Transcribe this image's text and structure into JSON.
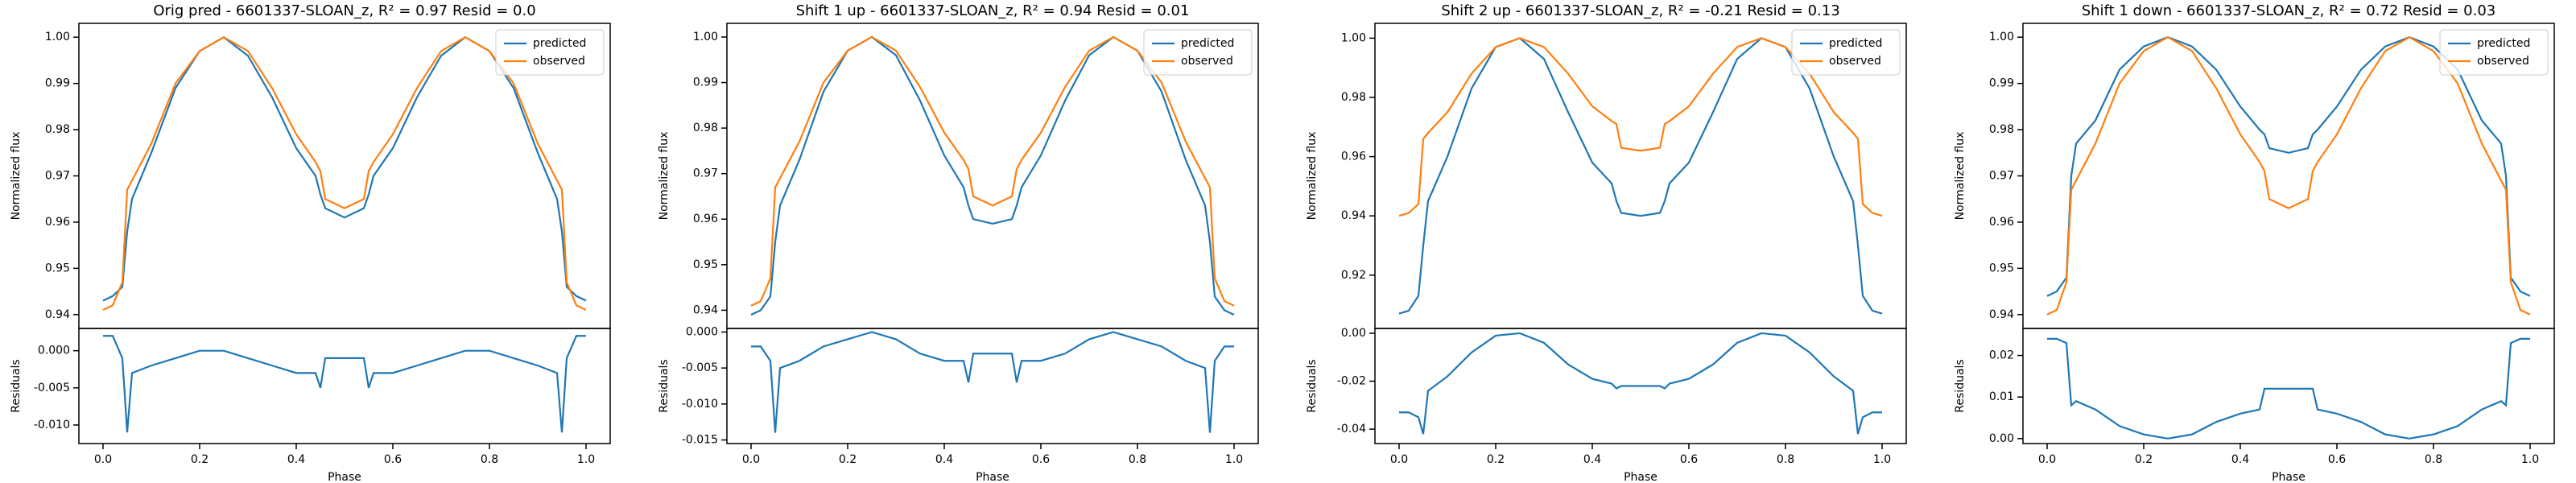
{
  "chart_data": [
    {
      "type": "line",
      "title": "Orig pred - 6601337-SLOAN_z, R² = 0.97 Resid = 0.0",
      "ylabel": "Normalized flux",
      "legend": "upper right",
      "x": [
        0,
        0.02,
        0.04,
        0.05,
        0.06,
        0.1,
        0.15,
        0.2,
        0.25,
        0.3,
        0.35,
        0.4,
        0.44,
        0.45,
        0.46,
        0.5,
        0.54,
        0.55,
        0.56,
        0.6,
        0.65,
        0.7,
        0.75,
        0.8,
        0.85,
        0.9,
        0.94,
        0.95,
        0.96,
        0.98,
        1
      ],
      "series": [
        {
          "name": "predicted",
          "color": "#1f77b4",
          "values": [
            0.943,
            0.944,
            0.946,
            0.958,
            0.965,
            0.975,
            0.989,
            0.997,
            1.0,
            0.996,
            0.987,
            0.976,
            0.97,
            0.966,
            0.963,
            0.961,
            0.963,
            0.966,
            0.97,
            0.976,
            0.987,
            0.996,
            1.0,
            0.997,
            0.989,
            0.975,
            0.965,
            0.958,
            0.946,
            0.944,
            0.943
          ]
        },
        {
          "name": "observed",
          "color": "#ff7f0e",
          "values": [
            0.941,
            0.942,
            0.947,
            0.967,
            0.969,
            0.977,
            0.99,
            0.997,
            1.0,
            0.997,
            0.989,
            0.979,
            0.973,
            0.971,
            0.965,
            0.963,
            0.965,
            0.971,
            0.973,
            0.979,
            0.989,
            0.997,
            1.0,
            0.997,
            0.99,
            0.977,
            0.969,
            0.967,
            0.947,
            0.942,
            0.941
          ]
        }
      ],
      "xlim": [
        -0.05,
        1.05
      ],
      "ylim": [
        0.937,
        1.003
      ],
      "yticks": [
        0.94,
        0.95,
        0.96,
        0.97,
        0.98,
        0.99,
        {
          "value": 1,
          "label": "1.00"
        }
      ]
    },
    {
      "type": "line",
      "xlabel": "Phase",
      "ylabel": "Residuals",
      "x": [
        0,
        0.02,
        0.04,
        0.05,
        0.06,
        0.1,
        0.15,
        0.2,
        0.25,
        0.3,
        0.35,
        0.4,
        0.44,
        0.45,
        0.46,
        0.5,
        0.54,
        0.55,
        0.56,
        0.6,
        0.65,
        0.7,
        0.75,
        0.8,
        0.85,
        0.9,
        0.94,
        0.95,
        0.96,
        0.98,
        1
      ],
      "series": [
        {
          "color": "#1f77b4",
          "values": [
            0.002,
            0.002,
            -0.001,
            -0.011,
            -0.003,
            -0.002,
            -0.001,
            0.0,
            0.0,
            -0.001,
            -0.002,
            -0.003,
            -0.003,
            -0.005,
            -0.001,
            -0.001,
            -0.001,
            -0.005,
            -0.003,
            -0.003,
            -0.002,
            -0.001,
            0.0,
            0.0,
            -0.001,
            -0.002,
            -0.003,
            -0.011,
            -0.001,
            0.002,
            0.002
          ]
        }
      ],
      "xlim": [
        -0.05,
        1.05
      ],
      "ylim": [
        -0.0125,
        0.003
      ],
      "xticks": [
        {
          "value": 0,
          "label": "0.0"
        },
        0.2,
        0.4,
        0.6,
        0.8,
        {
          "value": 1,
          "label": "1.0"
        }
      ],
      "yticks": [
        {
          "value": 0,
          "label": "0.000"
        },
        {
          "value": -0.005,
          "label": "-0.005"
        },
        {
          "value": -0.01,
          "label": "-0.010"
        }
      ]
    },
    {
      "type": "line",
      "title": "Shift 1 up - 6601337-SLOAN_z, R² = 0.94 Resid = 0.01",
      "ylabel": "Normalized flux",
      "legend": "upper right",
      "x": [
        0,
        0.02,
        0.04,
        0.05,
        0.06,
        0.1,
        0.15,
        0.2,
        0.25,
        0.3,
        0.35,
        0.4,
        0.44,
        0.45,
        0.46,
        0.5,
        0.54,
        0.55,
        0.56,
        0.6,
        0.65,
        0.7,
        0.75,
        0.8,
        0.85,
        0.9,
        0.94,
        0.95,
        0.96,
        0.98,
        1
      ],
      "series": [
        {
          "name": "predicted",
          "color": "#1f77b4",
          "values": [
            0.939,
            0.94,
            0.943,
            0.955,
            0.963,
            0.973,
            0.988,
            0.997,
            1.0,
            0.996,
            0.986,
            0.974,
            0.967,
            0.963,
            0.96,
            0.959,
            0.96,
            0.963,
            0.967,
            0.974,
            0.986,
            0.996,
            1.0,
            0.997,
            0.988,
            0.973,
            0.963,
            0.955,
            0.943,
            0.94,
            0.939
          ]
        },
        {
          "name": "observed",
          "color": "#ff7f0e",
          "values": [
            0.941,
            0.942,
            0.947,
            0.967,
            0.969,
            0.977,
            0.99,
            0.997,
            1.0,
            0.997,
            0.989,
            0.979,
            0.973,
            0.971,
            0.965,
            0.963,
            0.965,
            0.971,
            0.973,
            0.979,
            0.989,
            0.997,
            1.0,
            0.997,
            0.99,
            0.977,
            0.969,
            0.967,
            0.947,
            0.942,
            0.941
          ]
        }
      ],
      "xlim": [
        -0.05,
        1.05
      ],
      "ylim": [
        0.936,
        1.003
      ],
      "yticks": [
        0.94,
        0.95,
        0.96,
        0.97,
        0.98,
        0.99,
        {
          "value": 1,
          "label": "1.00"
        }
      ]
    },
    {
      "type": "line",
      "xlabel": "Phase",
      "ylabel": "Residuals",
      "x": [
        0,
        0.02,
        0.04,
        0.05,
        0.06,
        0.1,
        0.15,
        0.2,
        0.25,
        0.3,
        0.35,
        0.4,
        0.44,
        0.45,
        0.46,
        0.5,
        0.54,
        0.55,
        0.56,
        0.6,
        0.65,
        0.7,
        0.75,
        0.8,
        0.85,
        0.9,
        0.94,
        0.95,
        0.96,
        0.98,
        1
      ],
      "series": [
        {
          "color": "#1f77b4",
          "values": [
            -0.002,
            -0.002,
            -0.004,
            -0.014,
            -0.005,
            -0.004,
            -0.002,
            -0.001,
            0.0,
            -0.001,
            -0.003,
            -0.004,
            -0.004,
            -0.007,
            -0.003,
            -0.003,
            -0.003,
            -0.007,
            -0.004,
            -0.004,
            -0.003,
            -0.001,
            0.0,
            -0.001,
            -0.002,
            -0.004,
            -0.005,
            -0.014,
            -0.004,
            -0.002,
            -0.002
          ]
        }
      ],
      "xlim": [
        -0.05,
        1.05
      ],
      "ylim": [
        -0.0155,
        0.0005
      ],
      "xticks": [
        {
          "value": 0,
          "label": "0.0"
        },
        0.2,
        0.4,
        0.6,
        0.8,
        {
          "value": 1,
          "label": "1.0"
        }
      ],
      "yticks": [
        {
          "value": 0,
          "label": "0.000"
        },
        {
          "value": -0.005,
          "label": "-0.005"
        },
        {
          "value": -0.01,
          "label": "-0.010"
        },
        {
          "value": -0.015,
          "label": "-0.015"
        }
      ]
    },
    {
      "type": "line",
      "title": "Shift 2 up - 6601337-SLOAN_z, R² = -0.21 Resid = 0.13",
      "ylabel": "Normalized flux",
      "legend": "upper right",
      "x": [
        0,
        0.02,
        0.04,
        0.05,
        0.06,
        0.1,
        0.15,
        0.2,
        0.25,
        0.3,
        0.35,
        0.4,
        0.44,
        0.45,
        0.46,
        0.5,
        0.54,
        0.55,
        0.56,
        0.6,
        0.65,
        0.7,
        0.75,
        0.8,
        0.85,
        0.9,
        0.94,
        0.95,
        0.96,
        0.98,
        1
      ],
      "series": [
        {
          "name": "predicted",
          "color": "#1f77b4",
          "values": [
            0.907,
            0.908,
            0.913,
            0.93,
            0.945,
            0.96,
            0.983,
            0.997,
            1.0,
            0.993,
            0.975,
            0.958,
            0.951,
            0.945,
            0.941,
            0.94,
            0.941,
            0.945,
            0.951,
            0.958,
            0.975,
            0.993,
            1.0,
            0.997,
            0.983,
            0.96,
            0.945,
            0.93,
            0.913,
            0.908,
            0.907
          ]
        },
        {
          "name": "observed",
          "color": "#ff7f0e",
          "values": [
            0.94,
            0.941,
            0.944,
            0.966,
            0.968,
            0.975,
            0.988,
            0.997,
            1.0,
            0.997,
            0.988,
            0.977,
            0.972,
            0.971,
            0.963,
            0.962,
            0.963,
            0.971,
            0.972,
            0.977,
            0.988,
            0.997,
            1.0,
            0.997,
            0.988,
            0.975,
            0.968,
            0.966,
            0.944,
            0.941,
            0.94
          ]
        }
      ],
      "xlim": [
        -0.05,
        1.05
      ],
      "ylim": [
        0.902,
        1.005
      ],
      "yticks": [
        0.92,
        0.94,
        0.96,
        0.98,
        {
          "value": 1,
          "label": "1.00"
        }
      ]
    },
    {
      "type": "line",
      "xlabel": "Phase",
      "ylabel": "Residuals",
      "x": [
        0,
        0.02,
        0.04,
        0.05,
        0.06,
        0.1,
        0.15,
        0.2,
        0.25,
        0.3,
        0.35,
        0.4,
        0.44,
        0.45,
        0.46,
        0.5,
        0.54,
        0.55,
        0.56,
        0.6,
        0.65,
        0.7,
        0.75,
        0.8,
        0.85,
        0.9,
        0.94,
        0.95,
        0.96,
        0.98,
        1
      ],
      "series": [
        {
          "color": "#1f77b4",
          "values": [
            -0.033,
            -0.033,
            -0.035,
            -0.042,
            -0.024,
            -0.018,
            -0.008,
            -0.001,
            0.0,
            -0.004,
            -0.013,
            -0.019,
            -0.021,
            -0.023,
            -0.022,
            -0.022,
            -0.022,
            -0.023,
            -0.021,
            -0.019,
            -0.013,
            -0.004,
            0.0,
            -0.001,
            -0.008,
            -0.018,
            -0.024,
            -0.042,
            -0.035,
            -0.033,
            -0.033
          ]
        }
      ],
      "xlim": [
        -0.05,
        1.05
      ],
      "ylim": [
        -0.046,
        0.002
      ],
      "xticks": [
        {
          "value": 0,
          "label": "0.0"
        },
        0.2,
        0.4,
        0.6,
        0.8,
        {
          "value": 1,
          "label": "1.0"
        }
      ],
      "yticks": [
        {
          "value": 0,
          "label": "0.00"
        },
        {
          "value": -0.02,
          "label": "-0.02"
        },
        {
          "value": -0.04,
          "label": "-0.04"
        }
      ]
    },
    {
      "type": "line",
      "title": "Shift 1 down - 6601337-SLOAN_z, R² = 0.72 Resid = 0.03",
      "ylabel": "Normalized flux",
      "legend": "upper right",
      "x": [
        0,
        0.02,
        0.04,
        0.05,
        0.06,
        0.1,
        0.15,
        0.2,
        0.25,
        0.3,
        0.35,
        0.4,
        0.44,
        0.45,
        0.46,
        0.5,
        0.54,
        0.55,
        0.56,
        0.6,
        0.65,
        0.7,
        0.75,
        0.8,
        0.85,
        0.9,
        0.94,
        0.95,
        0.96,
        0.98,
        1
      ],
      "series": [
        {
          "name": "predicted",
          "color": "#1f77b4",
          "values": [
            0.944,
            0.945,
            0.948,
            0.97,
            0.977,
            0.982,
            0.993,
            0.998,
            1.0,
            0.998,
            0.993,
            0.985,
            0.98,
            0.979,
            0.976,
            0.975,
            0.976,
            0.979,
            0.98,
            0.985,
            0.993,
            0.998,
            1.0,
            0.998,
            0.993,
            0.982,
            0.977,
            0.97,
            0.948,
            0.945,
            0.944
          ]
        },
        {
          "name": "observed",
          "color": "#ff7f0e",
          "values": [
            0.94,
            0.941,
            0.947,
            0.967,
            0.969,
            0.977,
            0.99,
            0.997,
            1.0,
            0.997,
            0.989,
            0.979,
            0.973,
            0.971,
            0.965,
            0.963,
            0.965,
            0.971,
            0.973,
            0.979,
            0.989,
            0.997,
            1.0,
            0.997,
            0.99,
            0.977,
            0.969,
            0.967,
            0.947,
            0.941,
            0.94
          ]
        }
      ],
      "xlim": [
        -0.05,
        1.05
      ],
      "ylim": [
        0.937,
        1.003
      ],
      "yticks": [
        0.94,
        0.95,
        0.96,
        0.97,
        0.98,
        0.99,
        {
          "value": 1,
          "label": "1.00"
        }
      ]
    },
    {
      "type": "line",
      "xlabel": "Phase",
      "ylabel": "Residuals",
      "x": [
        0,
        0.02,
        0.04,
        0.05,
        0.06,
        0.1,
        0.15,
        0.2,
        0.25,
        0.3,
        0.35,
        0.4,
        0.44,
        0.45,
        0.46,
        0.5,
        0.54,
        0.55,
        0.56,
        0.6,
        0.65,
        0.7,
        0.75,
        0.8,
        0.85,
        0.9,
        0.94,
        0.95,
        0.96,
        0.98,
        1
      ],
      "series": [
        {
          "color": "#1f77b4",
          "values": [
            0.024,
            0.024,
            0.023,
            0.008,
            0.009,
            0.007,
            0.003,
            0.001,
            0.0,
            0.001,
            0.004,
            0.006,
            0.007,
            0.012,
            0.012,
            0.012,
            0.012,
            0.012,
            0.007,
            0.006,
            0.004,
            0.001,
            0.0,
            0.001,
            0.003,
            0.007,
            0.009,
            0.008,
            0.023,
            0.024,
            0.024
          ]
        }
      ],
      "xlim": [
        -0.05,
        1.05
      ],
      "ylim": [
        -0.0012,
        0.0265
      ],
      "xticks": [
        {
          "value": 0,
          "label": "0.0"
        },
        0.2,
        0.4,
        0.6,
        0.8,
        {
          "value": 1,
          "label": "1.0"
        }
      ],
      "yticks": [
        {
          "value": 0,
          "label": "0.00"
        },
        {
          "value": 0.01,
          "label": "0.01"
        },
        {
          "value": 0.02,
          "label": "0.02"
        }
      ]
    }
  ]
}
